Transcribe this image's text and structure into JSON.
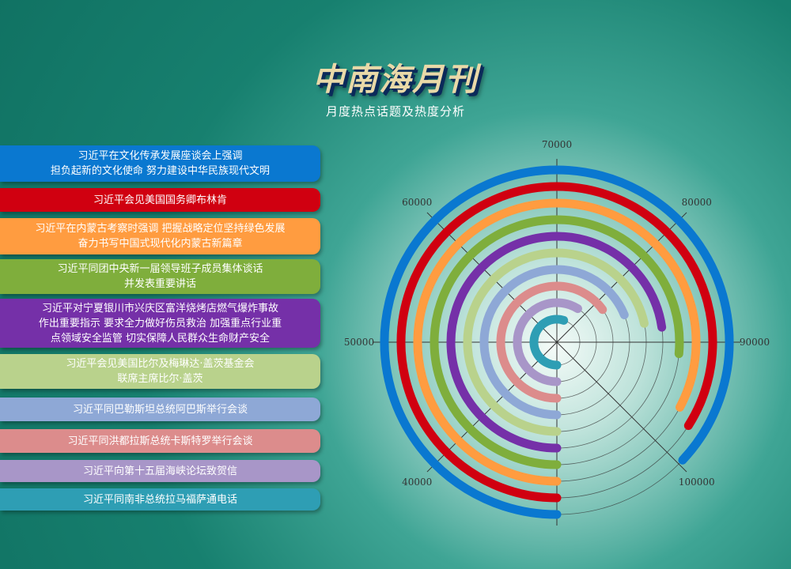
{
  "header": {
    "title": "中南海月刊",
    "subtitle": "月度热点话题及热度分析"
  },
  "chart_data": {
    "type": "radial-bar",
    "angle_axis": {
      "min": 30000,
      "max": 110000,
      "start": "bottom",
      "direction": "clockwise",
      "tick_labels": [
        "40000",
        "50000",
        "60000",
        "70000",
        "80000",
        "90000",
        "100000"
      ]
    },
    "categories": [
      "习近平在文化传承发展座谈会上强调\n担负起新的文化使命 努力建设中华民族现代文明",
      "习近平会见美国国务卿布林肯",
      "习近平在内蒙古考察时强调 把握战略定位坚持绿色发展\n奋力书写中国式现代化内蒙古新篇章",
      "习近平同团中央新一届领导班子成员集体谈话\n并发表重要讲话",
      "习近平对宁夏银川市兴庆区富洋烧烤店燃气爆炸事故\n作出重要指示 要求全力做好伤员救治 加强重点行业重\n点领域安全监管 切实保障人民群众生命财产安全",
      "习近平会见美国比尔及梅琳达·盖茨基金会\n联席主席比尔·盖茨",
      "习近平同巴勒斯坦总统阿巴斯举行会谈",
      "习近平同洪都拉斯总统卡斯特罗举行会谈",
      "习近平向第十五届海峡论坛致贺信",
      "习近平同南非总统拉马福萨通电话"
    ],
    "values": [
      99600,
      97200,
      96200,
      91200,
      88200,
      87300,
      85100,
      82100,
      77100,
      73900
    ],
    "colors": [
      "#0a78d0",
      "#d00010",
      "#ff9c40",
      "#7fae3c",
      "#7530a8",
      "#b9d28c",
      "#8ea8d6",
      "#dc8c8c",
      "#a896c8",
      "#2e9eb4"
    ]
  }
}
